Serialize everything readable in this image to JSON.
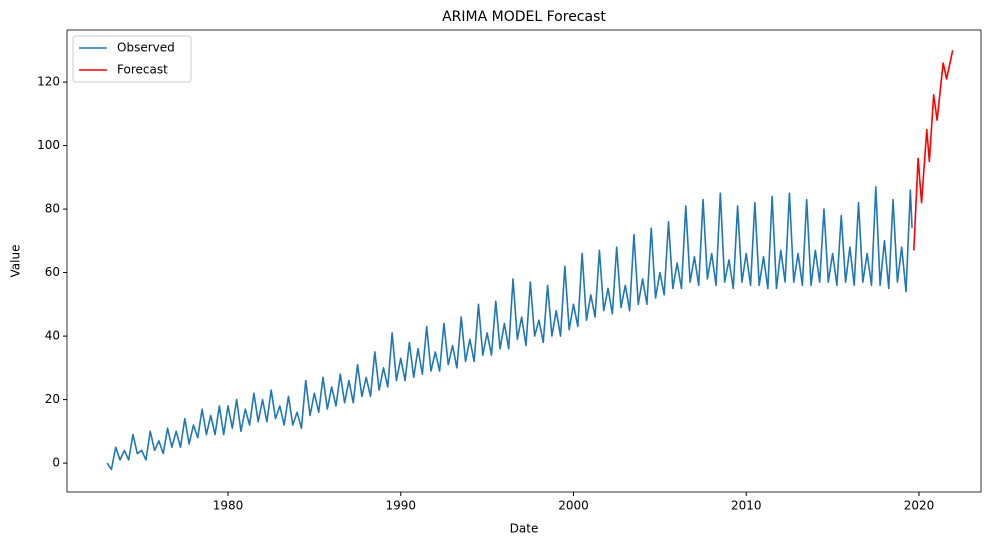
{
  "chart_data": {
    "type": "line",
    "title": "ARIMA MODEL Forecast",
    "x_label": "Date",
    "y_label": "Value",
    "xlim": [
      1970.68,
      2023.59
    ],
    "ylim": [
      -9.1,
      136.4
    ],
    "xticks": [
      1980,
      1990,
      2000,
      2010,
      2020
    ],
    "yticks": [
      0,
      20,
      40,
      60,
      80,
      100,
      120
    ],
    "legend": "upper left",
    "series": [
      {
        "name": "Observed",
        "color": "#1f77b4",
        "x": [
          1973,
          1973.25,
          1973.5,
          1973.75,
          1974,
          1974.25,
          1974.5,
          1974.75,
          1975,
          1975.25,
          1975.5,
          1975.75,
          1976,
          1976.25,
          1976.5,
          1976.75,
          1977,
          1977.25,
          1977.5,
          1977.75,
          1978,
          1978.25,
          1978.5,
          1978.75,
          1979,
          1979.25,
          1979.5,
          1979.75,
          1980,
          1980.25,
          1980.5,
          1980.75,
          1981,
          1981.25,
          1981.5,
          1981.75,
          1982,
          1982.25,
          1982.5,
          1982.75,
          1983,
          1983.25,
          1983.5,
          1983.75,
          1984,
          1984.25,
          1984.5,
          1984.75,
          1985,
          1985.25,
          1985.5,
          1985.75,
          1986,
          1986.25,
          1986.5,
          1986.75,
          1987,
          1987.25,
          1987.5,
          1987.75,
          1988,
          1988.25,
          1988.5,
          1988.75,
          1989,
          1989.25,
          1989.5,
          1989.75,
          1990,
          1990.25,
          1990.5,
          1990.75,
          1991,
          1991.25,
          1991.5,
          1991.75,
          1992,
          1992.25,
          1992.5,
          1992.75,
          1993,
          1993.25,
          1993.5,
          1993.75,
          1994,
          1994.25,
          1994.5,
          1994.75,
          1995,
          1995.25,
          1995.5,
          1995.75,
          1996,
          1996.25,
          1996.5,
          1996.75,
          1997,
          1997.25,
          1997.5,
          1997.75,
          1998,
          1998.25,
          1998.5,
          1998.75,
          1999,
          1999.25,
          1999.5,
          1999.75,
          2000,
          2000.25,
          2000.5,
          2000.75,
          2001,
          2001.25,
          2001.5,
          2001.75,
          2002,
          2002.25,
          2002.5,
          2002.75,
          2003,
          2003.25,
          2003.5,
          2003.75,
          2004,
          2004.25,
          2004.5,
          2004.75,
          2005,
          2005.25,
          2005.5,
          2005.75,
          2006,
          2006.25,
          2006.5,
          2006.75,
          2007,
          2007.25,
          2007.5,
          2007.75,
          2008,
          2008.25,
          2008.5,
          2008.75,
          2009,
          2009.25,
          2009.5,
          2009.75,
          2010,
          2010.25,
          2010.5,
          2010.75,
          2011,
          2011.25,
          2011.5,
          2011.75,
          2012,
          2012.25,
          2012.5,
          2012.75,
          2013,
          2013.25,
          2013.5,
          2013.75,
          2014,
          2014.25,
          2014.5,
          2014.75,
          2015,
          2015.25,
          2015.5,
          2015.75,
          2016,
          2016.25,
          2016.5,
          2016.75,
          2017,
          2017.25,
          2017.5,
          2017.75,
          2018,
          2018.25,
          2018.5,
          2018.75,
          2019,
          2019.25,
          2019.5,
          2019.6
        ],
        "values": [
          0,
          -2,
          5,
          1,
          4,
          1,
          9,
          3,
          4,
          1,
          10,
          4,
          7,
          3,
          11,
          5,
          10,
          5,
          14,
          6,
          12,
          8,
          17,
          9,
          15,
          9,
          18,
          9,
          18,
          11,
          20,
          10,
          17,
          12,
          22,
          13,
          20,
          13,
          23,
          14,
          18,
          12,
          21,
          12,
          16,
          11,
          26,
          15,
          22,
          16,
          27,
          17,
          24,
          18,
          28,
          19,
          26,
          19,
          31,
          21,
          27,
          21,
          35,
          23,
          30,
          24,
          41,
          26,
          33,
          26,
          38,
          27,
          36,
          28,
          43,
          29,
          35,
          29,
          44,
          31,
          37,
          30,
          46,
          32,
          39,
          32,
          50,
          34,
          41,
          34,
          51,
          36,
          44,
          36,
          58,
          39,
          46,
          37,
          57,
          40,
          45,
          38,
          56,
          40,
          48,
          40,
          62,
          42,
          50,
          43,
          66,
          45,
          53,
          46,
          67,
          48,
          55,
          47,
          68,
          49,
          56,
          48,
          72,
          50,
          58,
          50,
          74,
          52,
          60,
          53,
          76,
          55,
          63,
          55,
          81,
          57,
          65,
          56,
          83,
          58,
          66,
          56,
          85,
          57,
          64,
          55,
          81,
          57,
          66,
          56,
          82,
          56,
          65,
          55,
          84,
          55,
          67,
          57,
          85,
          57,
          66,
          56,
          83,
          56,
          67,
          57,
          80,
          57,
          66,
          56,
          78,
          57,
          68,
          56,
          82,
          57,
          66,
          56,
          87,
          56,
          70,
          55,
          83,
          57,
          68,
          54,
          86,
          74
        ]
      },
      {
        "name": "Forecast",
        "color": "#ff0000",
        "x": [
          2019.7,
          2019.95,
          2020.15,
          2020.45,
          2020.6,
          2020.85,
          2021.05,
          2021.4,
          2021.6,
          2021.95
        ],
        "values": [
          67,
          96,
          82,
          105,
          95,
          116,
          108,
          126,
          121,
          130
        ]
      }
    ]
  }
}
